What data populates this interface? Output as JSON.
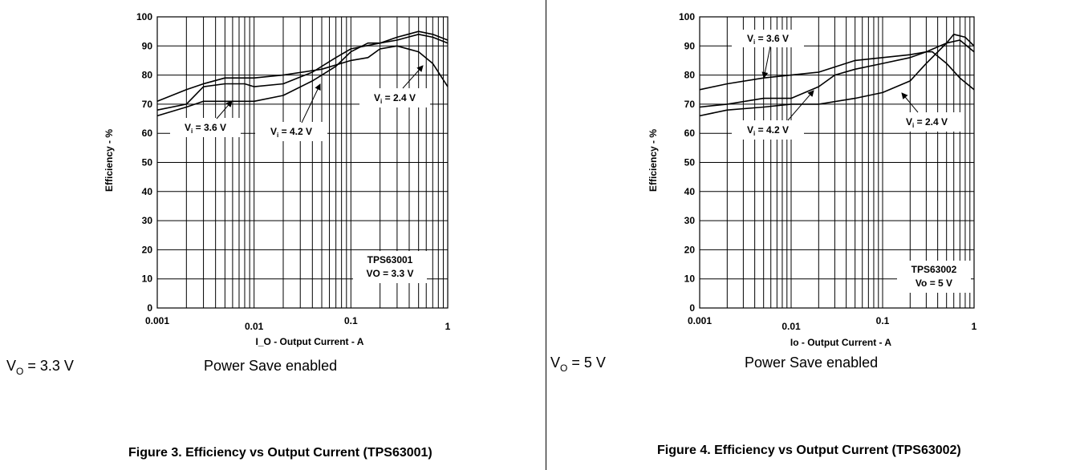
{
  "chart_data": [
    {
      "type": "line",
      "xscale": "log",
      "xlim": [
        0.001,
        1
      ],
      "ylim": [
        0,
        100
      ],
      "xlabel": "I_O - Output Current - A",
      "ylabel": "Efficiency - %",
      "xticks": [
        {
          "v": 0.001,
          "label": "0.001"
        },
        {
          "v": 0.01,
          "label": "0.01"
        },
        {
          "v": 0.1,
          "label": "0.1"
        },
        {
          "v": 1,
          "label": "1"
        }
      ],
      "yticks": [
        0,
        10,
        20,
        30,
        40,
        50,
        60,
        70,
        80,
        90,
        100
      ],
      "device_label": "TPS63001",
      "output_label": "VO = 3.3 V",
      "series": [
        {
          "name": "Vi = 3.6 V",
          "points": [
            [
              0.001,
              68
            ],
            [
              0.002,
              70
            ],
            [
              0.003,
              76
            ],
            [
              0.005,
              77
            ],
            [
              0.008,
              77
            ],
            [
              0.01,
              76
            ],
            [
              0.02,
              77
            ],
            [
              0.04,
              81
            ],
            [
              0.07,
              86
            ],
            [
              0.1,
              89
            ],
            [
              0.2,
              91
            ],
            [
              0.3,
              92
            ],
            [
              0.5,
              94
            ],
            [
              0.7,
              93
            ],
            [
              1,
              91
            ]
          ]
        },
        {
          "name": "Vi = 4.2 V",
          "points": [
            [
              0.001,
              66
            ],
            [
              0.002,
              69
            ],
            [
              0.003,
              71
            ],
            [
              0.005,
              71
            ],
            [
              0.01,
              71
            ],
            [
              0.02,
              73
            ],
            [
              0.04,
              78
            ],
            [
              0.07,
              83
            ],
            [
              0.1,
              88
            ],
            [
              0.15,
              91
            ],
            [
              0.2,
              91
            ],
            [
              0.3,
              93
            ],
            [
              0.5,
              95
            ],
            [
              0.7,
              94
            ],
            [
              1,
              92
            ]
          ]
        },
        {
          "name": "Vi = 2.4 V",
          "points": [
            [
              0.001,
              71
            ],
            [
              0.002,
              75
            ],
            [
              0.003,
              77
            ],
            [
              0.005,
              79
            ],
            [
              0.01,
              79
            ],
            [
              0.02,
              80
            ],
            [
              0.05,
              82
            ],
            [
              0.1,
              85
            ],
            [
              0.15,
              86
            ],
            [
              0.2,
              89
            ],
            [
              0.3,
              90
            ],
            [
              0.5,
              88
            ],
            [
              0.7,
              84
            ],
            [
              1,
              76
            ]
          ]
        }
      ],
      "annotations": [
        {
          "series": 0,
          "main": "V",
          "sub": "i",
          "tail": " = 3.6 V"
        },
        {
          "series": 1,
          "main": "V",
          "sub": "i",
          "tail": " = 4.2 V"
        },
        {
          "series": 2,
          "main": "V",
          "sub": "i",
          "tail": " = 2.4 V"
        }
      ]
    },
    {
      "type": "line",
      "xscale": "log",
      "xlim": [
        0.001,
        1
      ],
      "ylim": [
        0,
        100
      ],
      "xlabel": "Io - Output Current - A",
      "ylabel": "Efficiency - %",
      "xticks": [
        {
          "v": 0.001,
          "label": "0.001"
        },
        {
          "v": 0.01,
          "label": "0.01"
        },
        {
          "v": 0.1,
          "label": "0.1"
        },
        {
          "v": 1,
          "label": "1"
        }
      ],
      "yticks": [
        0,
        10,
        20,
        30,
        40,
        50,
        60,
        70,
        80,
        90,
        100
      ],
      "device_label": "TPS63002",
      "output_label": "Vo = 5 V",
      "series": [
        {
          "name": "Vi = 3.6 V",
          "points": [
            [
              0.001,
              69
            ],
            [
              0.002,
              70
            ],
            [
              0.005,
              72
            ],
            [
              0.01,
              72
            ],
            [
              0.02,
              76
            ],
            [
              0.03,
              80
            ],
            [
              0.05,
              82
            ],
            [
              0.1,
              84
            ],
            [
              0.2,
              86
            ],
            [
              0.3,
              88
            ],
            [
              0.5,
              91
            ],
            [
              0.7,
              92
            ],
            [
              1,
              88
            ]
          ]
        },
        {
          "name": "Vi = 4.2 V",
          "points": [
            [
              0.001,
              66
            ],
            [
              0.002,
              68
            ],
            [
              0.005,
              69
            ],
            [
              0.01,
              70
            ],
            [
              0.02,
              70
            ],
            [
              0.05,
              72
            ],
            [
              0.1,
              74
            ],
            [
              0.2,
              78
            ],
            [
              0.3,
              84
            ],
            [
              0.5,
              91
            ],
            [
              0.6,
              94
            ],
            [
              0.8,
              93
            ],
            [
              1,
              90
            ]
          ]
        },
        {
          "name": "Vi = 2.4 V",
          "points": [
            [
              0.001,
              75
            ],
            [
              0.002,
              77
            ],
            [
              0.005,
              79
            ],
            [
              0.01,
              80
            ],
            [
              0.02,
              81
            ],
            [
              0.05,
              85
            ],
            [
              0.1,
              86
            ],
            [
              0.2,
              87
            ],
            [
              0.3,
              88
            ],
            [
              0.35,
              88
            ],
            [
              0.5,
              84
            ],
            [
              0.7,
              79
            ],
            [
              1,
              75
            ]
          ]
        }
      ],
      "annotations": [
        {
          "series": 0,
          "main": "V",
          "sub": "i",
          "tail": " = 3.6 V"
        },
        {
          "series": 1,
          "main": "V",
          "sub": "i",
          "tail": " = 4.2 V"
        },
        {
          "series": 2,
          "main": "V",
          "sub": "i",
          "tail": " = 2.4 V"
        }
      ]
    }
  ],
  "captions": {
    "left": {
      "vo_main": "V",
      "vo_sub": "O",
      "vo_tail": " = 3.3 V",
      "mode": "Power Save enabled",
      "figure": "Figure 3. Efficiency vs Output Current (TPS63001)"
    },
    "right": {
      "vo_main": "V",
      "vo_sub": "O",
      "vo_tail": " = 5 V",
      "mode": "Power Save enabled",
      "figure": "Figure 4. Efficiency vs Output Current (TPS63002)"
    }
  }
}
